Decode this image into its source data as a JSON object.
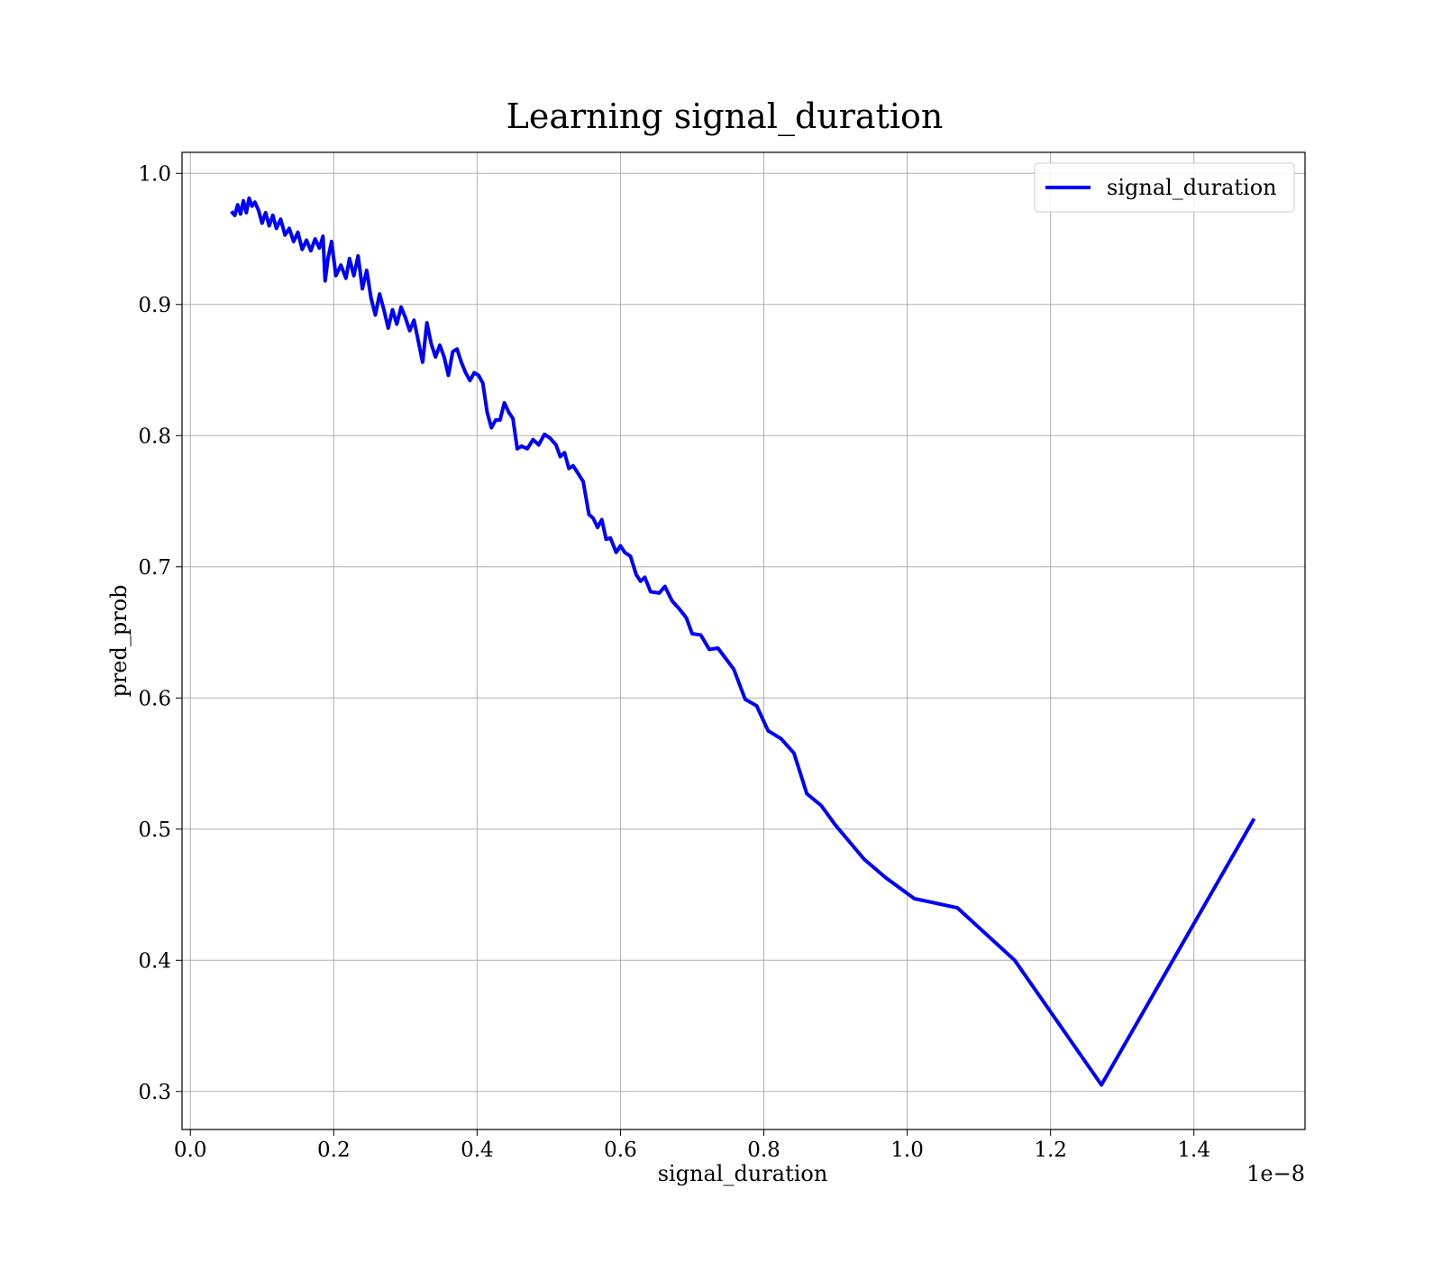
{
  "chart_data": {
    "type": "line",
    "title": "Learning signal_duration",
    "xlabel": "signal_duration",
    "ylabel": "pred_prob",
    "x_offset_label": "1e−8",
    "x": [
      0.057,
      0.062,
      0.066,
      0.07,
      0.074,
      0.078,
      0.082,
      0.086,
      0.09,
      0.095,
      0.1,
      0.105,
      0.11,
      0.115,
      0.12,
      0.126,
      0.132,
      0.138,
      0.144,
      0.15,
      0.156,
      0.162,
      0.168,
      0.174,
      0.18,
      0.185,
      0.188,
      0.192,
      0.197,
      0.203,
      0.21,
      0.217,
      0.222,
      0.228,
      0.234,
      0.24,
      0.246,
      0.252,
      0.258,
      0.264,
      0.27,
      0.276,
      0.282,
      0.288,
      0.294,
      0.3,
      0.306,
      0.312,
      0.318,
      0.324,
      0.33,
      0.336,
      0.342,
      0.348,
      0.354,
      0.36,
      0.366,
      0.372,
      0.378,
      0.384,
      0.39,
      0.396,
      0.402,
      0.408,
      0.414,
      0.42,
      0.426,
      0.432,
      0.438,
      0.444,
      0.45,
      0.456,
      0.462,
      0.47,
      0.478,
      0.486,
      0.494,
      0.502,
      0.51,
      0.516,
      0.522,
      0.528,
      0.534,
      0.54,
      0.548,
      0.556,
      0.562,
      0.568,
      0.574,
      0.58,
      0.586,
      0.594,
      0.6,
      0.606,
      0.614,
      0.622,
      0.628,
      0.634,
      0.642,
      0.654,
      0.662,
      0.672,
      0.682,
      0.692,
      0.7,
      0.712,
      0.724,
      0.736,
      0.758,
      0.774,
      0.79,
      0.806,
      0.824,
      0.842,
      0.86,
      0.88,
      0.9,
      0.94,
      0.97,
      1.01,
      1.07,
      1.15,
      1.271,
      1.484
    ],
    "series": [
      {
        "name": "signal_duration",
        "color": "#0000ff",
        "values": [
          0.971,
          0.968,
          0.976,
          0.969,
          0.979,
          0.97,
          0.981,
          0.975,
          0.978,
          0.972,
          0.962,
          0.97,
          0.96,
          0.968,
          0.958,
          0.965,
          0.953,
          0.958,
          0.948,
          0.955,
          0.942,
          0.949,
          0.941,
          0.95,
          0.943,
          0.952,
          0.918,
          0.935,
          0.948,
          0.922,
          0.93,
          0.92,
          0.935,
          0.922,
          0.937,
          0.912,
          0.926,
          0.905,
          0.892,
          0.908,
          0.896,
          0.882,
          0.896,
          0.885,
          0.898,
          0.89,
          0.88,
          0.888,
          0.872,
          0.856,
          0.886,
          0.87,
          0.86,
          0.869,
          0.86,
          0.846,
          0.864,
          0.866,
          0.856,
          0.848,
          0.842,
          0.848,
          0.846,
          0.84,
          0.818,
          0.806,
          0.812,
          0.812,
          0.825,
          0.818,
          0.813,
          0.79,
          0.792,
          0.79,
          0.797,
          0.793,
          0.801,
          0.798,
          0.793,
          0.784,
          0.787,
          0.775,
          0.777,
          0.772,
          0.765,
          0.74,
          0.737,
          0.73,
          0.736,
          0.721,
          0.722,
          0.711,
          0.716,
          0.711,
          0.708,
          0.694,
          0.689,
          0.692,
          0.681,
          0.68,
          0.685,
          0.674,
          0.668,
          0.661,
          0.649,
          0.648,
          0.637,
          0.638,
          0.622,
          0.599,
          0.594,
          0.575,
          0.569,
          0.558,
          0.527,
          0.518,
          0.503,
          0.477,
          0.463,
          0.447,
          0.44,
          0.4,
          0.305,
          0.508
        ]
      }
    ],
    "xlim": [
      -0.0116,
      1.555
    ],
    "ylim": [
      0.271,
      1.016
    ],
    "xticks": [
      {
        "value": 0,
        "label": "0.0"
      },
      0.2,
      0.4,
      0.6,
      0.8,
      {
        "value": 1,
        "label": "1.0"
      },
      1.2,
      1.4
    ],
    "yticks": [
      0.3,
      0.4,
      0.5,
      0.6,
      0.7,
      0.8,
      0.9,
      {
        "value": 1,
        "label": "1.0"
      }
    ],
    "grid": true,
    "legend": "upper right"
  }
}
